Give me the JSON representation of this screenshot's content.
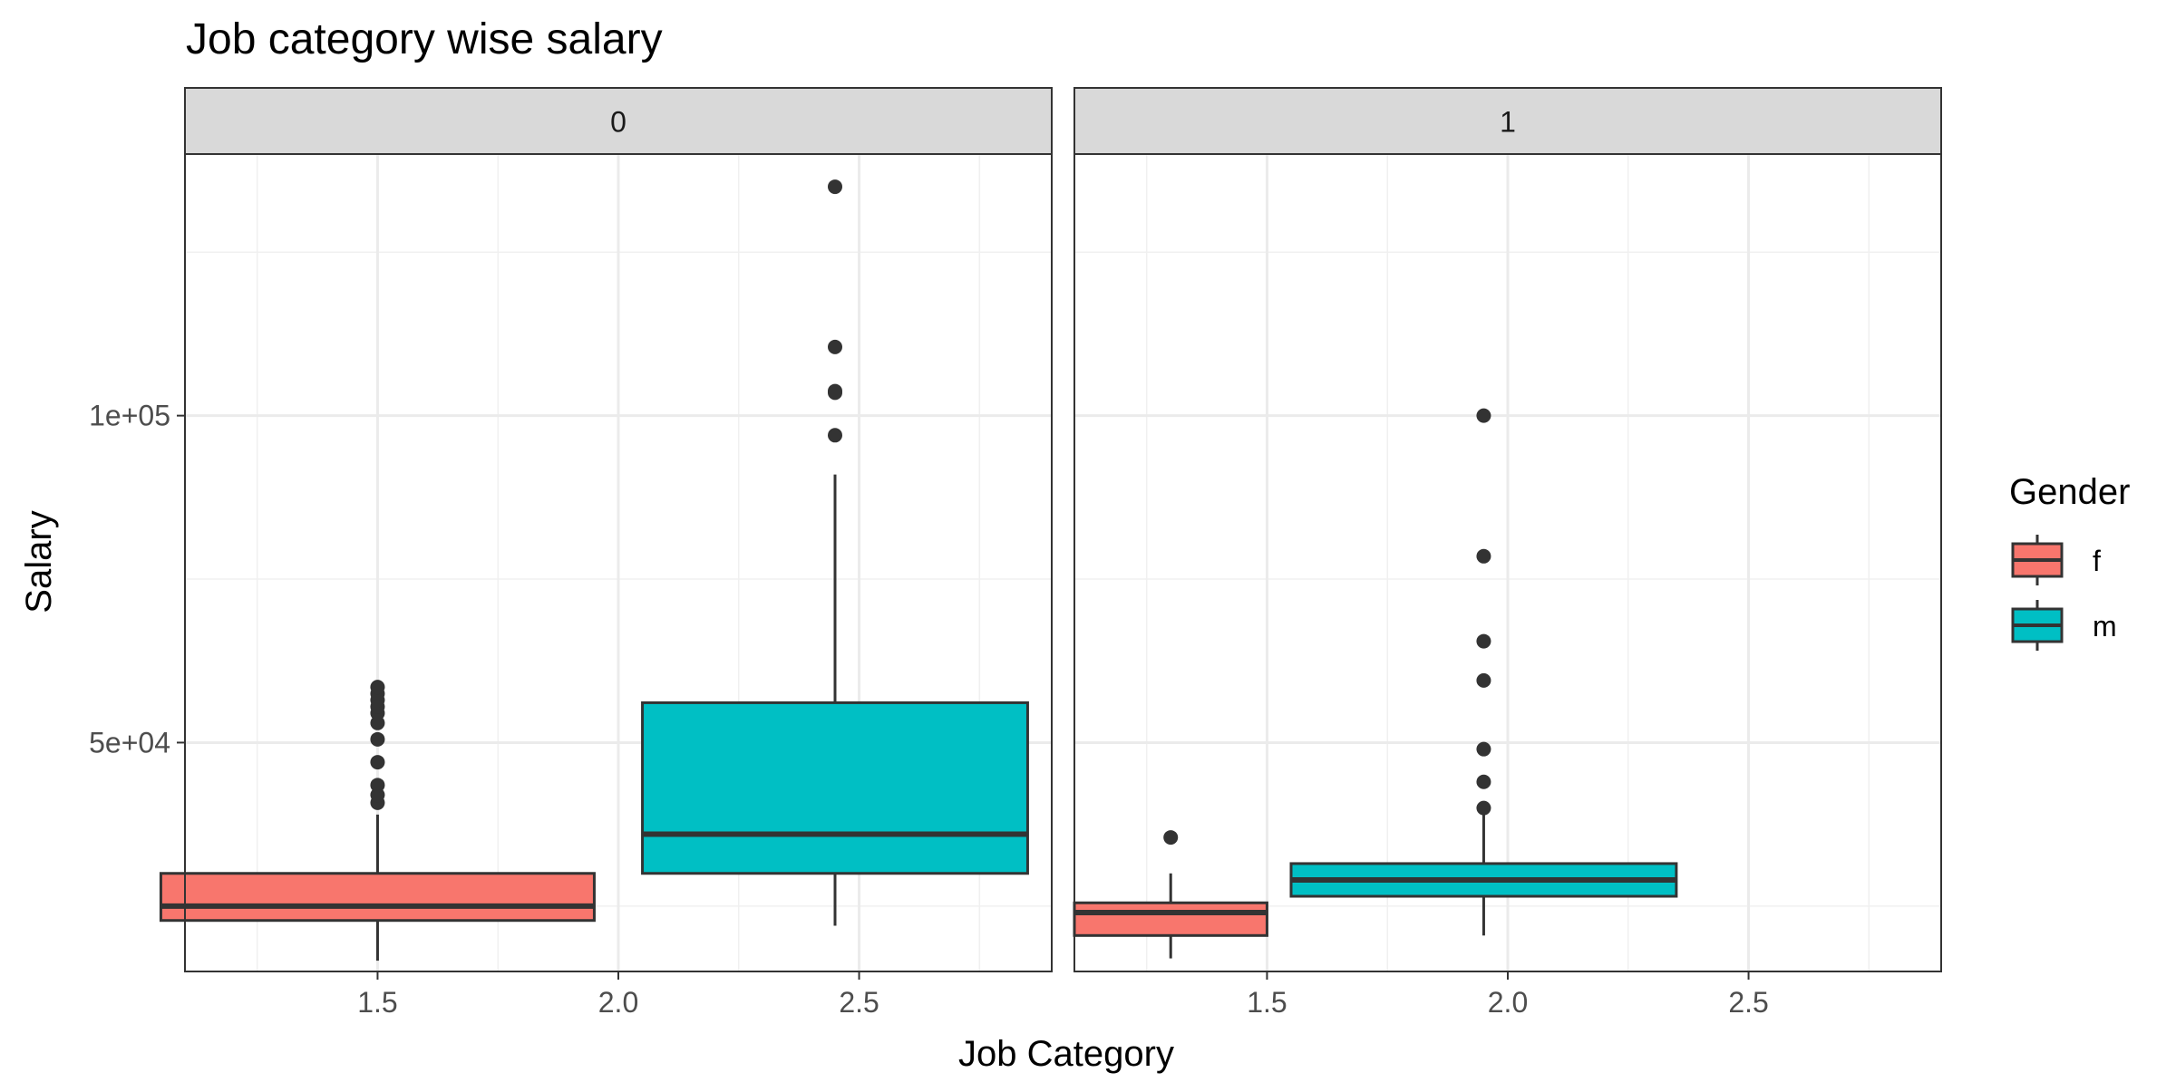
{
  "chart_data": {
    "type": "box",
    "title": "Job category wise salary",
    "xlabel": "Job Category",
    "ylabel": "Salary",
    "xlim": [
      1.1,
      2.9
    ],
    "ylim": [
      15000,
      140000
    ],
    "x_ticks": [
      {
        "value": 1.5,
        "label": "1.5"
      },
      {
        "value": 2.0,
        "label": "2.0"
      },
      {
        "value": 2.5,
        "label": "2.5"
      }
    ],
    "y_ticks": [
      {
        "value": 50000,
        "label": "5e+04"
      },
      {
        "value": 100000,
        "label": "1e+05"
      }
    ],
    "y_minor_grid": [
      25000,
      75000,
      125000
    ],
    "x_minor_grid": [
      1.25,
      1.75,
      2.25,
      2.75
    ],
    "grid": true,
    "legend": {
      "title": "Gender",
      "position": "right",
      "entries": [
        {
          "label": "f",
          "color": "#F8766D"
        },
        {
          "label": "m",
          "color": "#00BFC4"
        }
      ]
    },
    "panels": [
      {
        "label": "0",
        "boxes": [
          {
            "group": "f",
            "x_center": 1.5,
            "x_min": 1.05,
            "x_max": 1.95,
            "whisker_low": 16650,
            "q1": 22800,
            "median": 24990,
            "q3": 30000,
            "whisker_high": 39000,
            "outliers": [
              40800,
              42000,
              43500,
              47000,
              50500,
              53000,
              54500,
              55500,
              56500,
              57500,
              58500
            ]
          },
          {
            "group": "m",
            "x_center": 2.45,
            "x_min": 2.05,
            "x_max": 2.85,
            "whisker_low": 22000,
            "q1": 30000,
            "median": 36000,
            "q3": 56100,
            "whisker_high": 91000,
            "outliers": [
              97000,
              103500,
              103750,
              110500,
              135000
            ]
          }
        ]
      },
      {
        "label": "1",
        "boxes": [
          {
            "group": "f",
            "x_center": 1.3,
            "x_min": 1.1,
            "x_max": 1.5,
            "whisker_low": 17000,
            "q1": 20500,
            "median": 24000,
            "q3": 25500,
            "whisker_high": 30000,
            "outliers": [
              35500
            ]
          },
          {
            "group": "m",
            "x_center": 1.95,
            "x_min": 1.55,
            "x_max": 2.35,
            "whisker_low": 20500,
            "q1": 26500,
            "median": 29000,
            "q3": 31500,
            "whisker_high": 39000,
            "outliers": [
              40000,
              44000,
              49000,
              59500,
              65500,
              78500,
              100000
            ]
          }
        ]
      }
    ]
  }
}
